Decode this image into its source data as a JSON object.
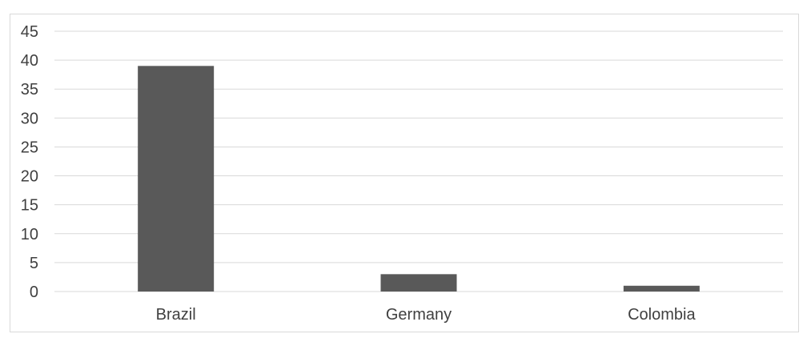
{
  "chart_data": {
    "type": "bar",
    "categories": [
      "Brazil",
      "Germany",
      "Colombia"
    ],
    "values": [
      39,
      3,
      1
    ],
    "title": "",
    "xlabel": "",
    "ylabel": "",
    "ylim": [
      0,
      45
    ],
    "yticks": [
      0,
      5,
      10,
      15,
      20,
      25,
      30,
      35,
      40,
      45
    ],
    "grid": true,
    "legend": "none",
    "bar_color": "#595959",
    "grid_color": "#d9d9d9"
  }
}
